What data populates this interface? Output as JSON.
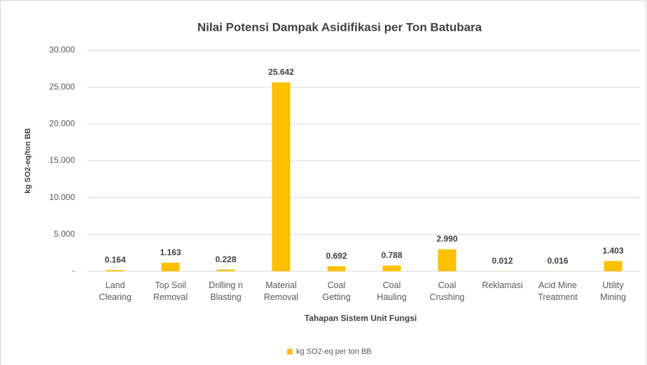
{
  "chart_data": {
    "type": "bar",
    "title": "Nilai Potensi Dampak Asidifikasi per Ton Batubara",
    "x_label": "Tahapan Sistem Unit Fungsi",
    "y_label": "kg SO2-eq/ton BB",
    "categories": [
      "Land\nClearing",
      "Top Soil\nRemoval",
      "Drilling n\nBlasting",
      "Material\nRemoval",
      "Coal\nGetting",
      "Coal\nHauling",
      "Coal\nCrushing",
      "Reklamasi",
      "Acid Mine\nTreatment",
      "Utility\nMining"
    ],
    "series": [
      {
        "name": "kg SO2-eq per ton BB",
        "color": "#ffc000",
        "values": [
          0.164,
          1.163,
          0.228,
          25.642,
          0.692,
          0.788,
          2.99,
          0.012,
          0.016,
          1.403
        ],
        "value_labels": [
          "0.164",
          "1.163",
          "0.228",
          "25.642",
          "0.692",
          "0.788",
          "2.990",
          "0.012",
          "0.016",
          "1.403"
        ]
      }
    ],
    "ylim": [
      0,
      30
    ],
    "yticks": [
      {
        "value": 0,
        "label": "-"
      },
      {
        "value": 5,
        "label": "5.000"
      },
      {
        "value": 10,
        "label": "10.000"
      },
      {
        "value": 15,
        "label": "15.000"
      },
      {
        "value": 20,
        "label": "20.000"
      },
      {
        "value": 25,
        "label": "25.000"
      },
      {
        "value": 30,
        "label": "30.000"
      }
    ],
    "grid": true,
    "legend": "bottom"
  }
}
